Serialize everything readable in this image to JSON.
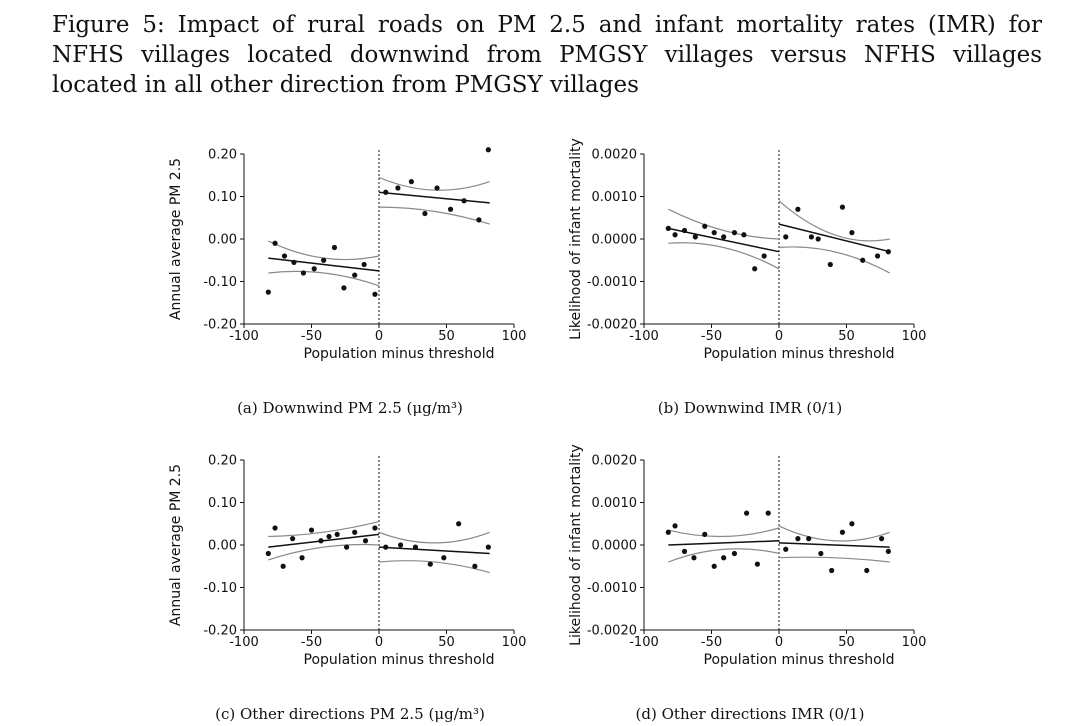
{
  "figure": {
    "title": "Figure 5: Impact of rural roads on PM 2.5 and infant mortality rates (IMR) for NFHS villages located downwind from PMGSY villages versus NFHS villages located in all other direction from PMGSY villages"
  },
  "captions": {
    "a": "(a) Downwind PM 2.5 (μg/m³)",
    "b": "(b) Downwind IMR (0/1)",
    "c": "(c) Other directions PM 2.5 (μg/m³)",
    "d": "(d) Other directions IMR (0/1)"
  },
  "chart_data": [
    {
      "type": "scatter",
      "panel": "a",
      "xlabel": "Population minus threshold",
      "ylabel": "Annual average PM 2.5",
      "xlim": [
        -100,
        100
      ],
      "ylim": [
        -0.2,
        0.2
      ],
      "x_ticks": [
        "-100",
        "-50",
        "0",
        "50",
        "100"
      ],
      "y_ticks": [
        "0.20",
        "0.10",
        "0.00",
        "-0.10",
        "-0.20"
      ],
      "cutoff": 0,
      "points": [
        [
          -82,
          -0.125
        ],
        [
          -77,
          -0.01
        ],
        [
          -70,
          -0.04
        ],
        [
          -63,
          -0.055
        ],
        [
          -56,
          -0.08
        ],
        [
          -48,
          -0.07
        ],
        [
          -41,
          -0.05
        ],
        [
          -33,
          -0.02
        ],
        [
          -26,
          -0.115
        ],
        [
          -18,
          -0.085
        ],
        [
          -11,
          -0.06
        ],
        [
          -3,
          -0.13
        ],
        [
          5,
          0.11
        ],
        [
          14,
          0.12
        ],
        [
          24,
          0.135
        ],
        [
          34,
          0.06
        ],
        [
          43,
          0.12
        ],
        [
          53,
          0.07
        ],
        [
          63,
          0.09
        ],
        [
          74,
          0.045
        ],
        [
          81,
          0.21
        ]
      ],
      "fit_left": {
        "x": [
          -82,
          0
        ],
        "y": [
          -0.045,
          -0.075
        ]
      },
      "ci_left_upper": {
        "x": [
          -82,
          -41,
          0
        ],
        "y": [
          -0.005,
          -0.045,
          -0.04
        ]
      },
      "ci_left_lower": {
        "x": [
          -82,
          -41,
          0
        ],
        "y": [
          -0.08,
          -0.08,
          -0.11
        ]
      },
      "fit_right": {
        "x": [
          0,
          82
        ],
        "y": [
          0.11,
          0.085
        ]
      },
      "ci_right_upper": {
        "x": [
          0,
          41,
          82
        ],
        "y": [
          0.145,
          0.115,
          0.135
        ]
      },
      "ci_right_lower": {
        "x": [
          0,
          41,
          82
        ],
        "y": [
          0.075,
          0.065,
          0.035
        ]
      }
    },
    {
      "type": "scatter",
      "panel": "b",
      "xlabel": "Population minus threshold",
      "ylabel": "Likelihood of infant mortality",
      "xlim": [
        -100,
        100
      ],
      "ylim": [
        -0.002,
        0.002
      ],
      "x_ticks": [
        "-100",
        "-50",
        "0",
        "50",
        "100"
      ],
      "y_ticks": [
        "0.0020",
        "0.0010",
        "0.0000",
        "-0.0010",
        "-0.0020"
      ],
      "cutoff": 0,
      "points": [
        [
          -82,
          0.00025
        ],
        [
          -77,
          0.0001
        ],
        [
          -70,
          0.0002
        ],
        [
          -62,
          5e-05
        ],
        [
          -55,
          0.0003
        ],
        [
          -48,
          0.00015
        ],
        [
          -41,
          5e-05
        ],
        [
          -33,
          0.00015
        ],
        [
          -26,
          0.0001
        ],
        [
          -18,
          -0.0007
        ],
        [
          -11,
          -0.0004
        ],
        [
          5,
          5e-05
        ],
        [
          14,
          0.0007
        ],
        [
          24,
          5e-05
        ],
        [
          29,
          0.0
        ],
        [
          38,
          -0.0006
        ],
        [
          47,
          0.00075
        ],
        [
          54,
          0.00015
        ],
        [
          62,
          -0.0005
        ],
        [
          73,
          -0.0004
        ],
        [
          81,
          -0.0003
        ]
      ],
      "fit_left": {
        "x": [
          -82,
          0
        ],
        "y": [
          0.00025,
          -0.0003
        ]
      },
      "ci_left_upper": {
        "x": [
          -82,
          -41,
          0
        ],
        "y": [
          0.0007,
          0.0002,
          0.0
        ]
      },
      "ci_left_lower": {
        "x": [
          -82,
          -41,
          0
        ],
        "y": [
          -0.0001,
          -0.0002,
          -0.0007
        ]
      },
      "fit_right": {
        "x": [
          0,
          82
        ],
        "y": [
          0.00035,
          -0.0003
        ]
      },
      "ci_right_upper": {
        "x": [
          0,
          41,
          82
        ],
        "y": [
          0.0009,
          0.0001,
          0.0
        ]
      },
      "ci_right_lower": {
        "x": [
          0,
          41,
          82
        ],
        "y": [
          -0.0002,
          -0.0003,
          -0.0008
        ]
      }
    },
    {
      "type": "scatter",
      "panel": "c",
      "xlabel": "Population minus threshold",
      "ylabel": "Annual average PM 2.5",
      "xlim": [
        -100,
        100
      ],
      "ylim": [
        -0.2,
        0.2
      ],
      "x_ticks": [
        "-100",
        "-50",
        "0",
        "50",
        "100"
      ],
      "y_ticks": [
        "0.20",
        "0.10",
        "0.00",
        "-0.10",
        "-0.20"
      ],
      "cutoff": 0,
      "points": [
        [
          -82,
          -0.02
        ],
        [
          -77,
          0.04
        ],
        [
          -71,
          -0.05
        ],
        [
          -64,
          0.015
        ],
        [
          -57,
          -0.03
        ],
        [
          -50,
          0.035
        ],
        [
          -43,
          0.01
        ],
        [
          -37,
          0.02
        ],
        [
          -31,
          0.025
        ],
        [
          -24,
          -0.005
        ],
        [
          -18,
          0.03
        ],
        [
          -10,
          0.01
        ],
        [
          -3,
          0.04
        ],
        [
          5,
          -0.005
        ],
        [
          16,
          0.0
        ],
        [
          27,
          -0.005
        ],
        [
          38,
          -0.045
        ],
        [
          48,
          -0.03
        ],
        [
          59,
          0.05
        ],
        [
          71,
          -0.05
        ],
        [
          81,
          -0.005
        ]
      ],
      "fit_left": {
        "x": [
          -82,
          0
        ],
        "y": [
          -0.005,
          0.025
        ]
      },
      "ci_left_upper": {
        "x": [
          -82,
          -41,
          0
        ],
        "y": [
          0.02,
          0.03,
          0.055
        ]
      },
      "ci_left_lower": {
        "x": [
          -82,
          -41,
          0
        ],
        "y": [
          -0.035,
          -0.005,
          0.0
        ]
      },
      "fit_right": {
        "x": [
          0,
          82
        ],
        "y": [
          -0.005,
          -0.02
        ]
      },
      "ci_right_upper": {
        "x": [
          0,
          41,
          82
        ],
        "y": [
          0.03,
          0.005,
          0.03
        ]
      },
      "ci_right_lower": {
        "x": [
          0,
          41,
          82
        ],
        "y": [
          -0.04,
          -0.04,
          -0.065
        ]
      }
    },
    {
      "type": "scatter",
      "panel": "d",
      "xlabel": "Population minus threshold",
      "ylabel": "Likelihood of infant mortality",
      "xlim": [
        -100,
        100
      ],
      "ylim": [
        -0.002,
        0.002
      ],
      "x_ticks": [
        "-100",
        "-50",
        "0",
        "50",
        "100"
      ],
      "y_ticks": [
        "0.0020",
        "0.0010",
        "0.0000",
        "-0.0010",
        "-0.0020"
      ],
      "cutoff": 0,
      "points": [
        [
          -82,
          0.0003
        ],
        [
          -77,
          0.00045
        ],
        [
          -70,
          -0.00015
        ],
        [
          -63,
          -0.0003
        ],
        [
          -55,
          0.00025
        ],
        [
          -48,
          -0.0005
        ],
        [
          -41,
          -0.0003
        ],
        [
          -33,
          -0.0002
        ],
        [
          -24,
          0.00075
        ],
        [
          -16,
          -0.00045
        ],
        [
          -8,
          0.00075
        ],
        [
          5,
          -0.0001
        ],
        [
          14,
          0.00015
        ],
        [
          22,
          0.00015
        ],
        [
          31,
          -0.0002
        ],
        [
          39,
          -0.0006
        ],
        [
          47,
          0.0003
        ],
        [
          54,
          0.0005
        ],
        [
          65,
          -0.0006
        ],
        [
          76,
          0.00015
        ],
        [
          81,
          -0.00015
        ]
      ],
      "fit_left": {
        "x": [
          -82,
          0
        ],
        "y": [
          0.0,
          0.0001
        ]
      },
      "ci_left_upper": {
        "x": [
          -82,
          -41,
          0
        ],
        "y": [
          0.00035,
          0.0002,
          0.0004
        ]
      },
      "ci_left_lower": {
        "x": [
          -82,
          -41,
          0
        ],
        "y": [
          -0.0004,
          -0.0001,
          -0.0002
        ]
      },
      "fit_right": {
        "x": [
          0,
          82
        ],
        "y": [
          5e-05,
          -5e-05
        ]
      },
      "ci_right_upper": {
        "x": [
          0,
          41,
          82
        ],
        "y": [
          0.00045,
          0.0001,
          0.0003
        ]
      },
      "ci_right_lower": {
        "x": [
          0,
          41,
          82
        ],
        "y": [
          -0.0003,
          -0.0003,
          -0.0004
        ]
      }
    }
  ]
}
